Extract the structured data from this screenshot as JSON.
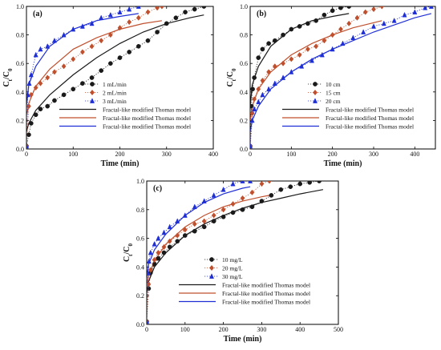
{
  "colors": {
    "black": "#1a1a1a",
    "red": "#c0502d",
    "blue": "#1f2fd6"
  },
  "chart_data": [
    {
      "type": "line",
      "panel_label": "(a)",
      "xlabel": "Time (min)",
      "ylabel_main": "C",
      "ylabel_sub1": "t",
      "ylabel_mid": "/C",
      "ylabel_sub2": "0",
      "xlim": [
        0,
        400
      ],
      "ylim": [
        0,
        1.0
      ],
      "xticks": [
        "0",
        "100",
        "200",
        "300",
        "400"
      ],
      "yticks": [
        "0.0",
        "0.2",
        "0.4",
        "0.6",
        "0.8",
        "1.0"
      ],
      "xtick_values": [
        0,
        100,
        200,
        300,
        400
      ],
      "ytick_values": [
        0,
        0.2,
        0.4,
        0.6,
        0.8,
        1.0
      ],
      "legend_position": "center-right",
      "series": [
        {
          "name": "1 mL/min",
          "marker": "circle",
          "color": "black",
          "x": [
            0,
            5,
            10,
            20,
            30,
            45,
            60,
            80,
            100,
            120,
            140,
            160,
            180,
            200,
            220,
            240,
            260,
            280,
            300,
            320,
            340,
            360,
            380
          ],
          "y": [
            0.02,
            0.1,
            0.18,
            0.24,
            0.28,
            0.3,
            0.34,
            0.38,
            0.42,
            0.46,
            0.5,
            0.55,
            0.6,
            0.64,
            0.68,
            0.72,
            0.76,
            0.82,
            0.88,
            0.92,
            0.96,
            0.98,
            1.0
          ]
        },
        {
          "name": "2 mL/min",
          "marker": "diamond",
          "color": "red",
          "x": [
            0,
            5,
            10,
            20,
            30,
            45,
            60,
            80,
            100,
            120,
            140,
            160,
            180,
            200,
            220,
            240,
            260,
            280,
            290
          ],
          "y": [
            0.02,
            0.3,
            0.38,
            0.43,
            0.46,
            0.5,
            0.54,
            0.58,
            0.63,
            0.68,
            0.72,
            0.76,
            0.8,
            0.85,
            0.89,
            0.92,
            0.96,
            0.99,
            1.0
          ]
        },
        {
          "name": "3 mL/min",
          "marker": "triangle",
          "color": "blue",
          "x": [
            0,
            3,
            6,
            10,
            20,
            30,
            45,
            60,
            80,
            100,
            120,
            140,
            160,
            180,
            200,
            220,
            240
          ],
          "y": [
            0.02,
            0.38,
            0.46,
            0.52,
            0.66,
            0.7,
            0.72,
            0.76,
            0.8,
            0.84,
            0.86,
            0.88,
            0.92,
            0.94,
            0.96,
            0.98,
            1.0
          ]
        }
      ],
      "models": [
        {
          "name": "Fractal-like modified Thomas model",
          "color": "black",
          "x": [
            0,
            5,
            20,
            50,
            100,
            150,
            200,
            250,
            300,
            350,
            380
          ],
          "y": [
            0.12,
            0.18,
            0.27,
            0.38,
            0.52,
            0.64,
            0.74,
            0.82,
            0.88,
            0.92,
            0.94
          ]
        },
        {
          "name": "Fractal-like modified Thomas model",
          "color": "red",
          "x": [
            0,
            5,
            20,
            50,
            100,
            150,
            200,
            250,
            290
          ],
          "y": [
            0.22,
            0.32,
            0.44,
            0.56,
            0.7,
            0.78,
            0.84,
            0.88,
            0.9
          ]
        },
        {
          "name": "Fractal-like modified Thomas model",
          "color": "blue",
          "x": [
            0,
            5,
            20,
            50,
            100,
            150,
            200,
            240
          ],
          "y": [
            0.3,
            0.45,
            0.58,
            0.72,
            0.84,
            0.9,
            0.93,
            0.95
          ]
        }
      ]
    },
    {
      "type": "line",
      "panel_label": "(b)",
      "xlabel": "Time (min)",
      "ylabel_main": "C",
      "ylabel_sub1": "t",
      "ylabel_mid": "/C",
      "ylabel_sub2": "0",
      "xlim": [
        0,
        450
      ],
      "ylim": [
        0,
        1.0
      ],
      "xticks": [
        "0",
        "100",
        "200",
        "300",
        "400"
      ],
      "yticks": [
        "0.0",
        "0.2",
        "0.4",
        "0.6",
        "0.8",
        "1.0"
      ],
      "xtick_values": [
        0,
        100,
        200,
        300,
        400
      ],
      "ytick_values": [
        0,
        0.2,
        0.4,
        0.6,
        0.8,
        1.0
      ],
      "legend_position": "center-right",
      "series": [
        {
          "name": "10 cm",
          "marker": "circle",
          "color": "black",
          "x": [
            0,
            3,
            6,
            10,
            20,
            30,
            45,
            60,
            80,
            100,
            120,
            140,
            160,
            180,
            200,
            220,
            240
          ],
          "y": [
            0.02,
            0.3,
            0.42,
            0.5,
            0.64,
            0.7,
            0.74,
            0.76,
            0.8,
            0.84,
            0.86,
            0.88,
            0.9,
            0.94,
            0.97,
            0.99,
            1.0
          ]
        },
        {
          "name": "15 cm",
          "marker": "diamond",
          "color": "red",
          "x": [
            0,
            5,
            10,
            20,
            30,
            45,
            60,
            80,
            100,
            120,
            140,
            160,
            180,
            200,
            220,
            240,
            260,
            280,
            300,
            320
          ],
          "y": [
            0.02,
            0.25,
            0.35,
            0.42,
            0.48,
            0.54,
            0.58,
            0.6,
            0.63,
            0.66,
            0.7,
            0.72,
            0.76,
            0.8,
            0.84,
            0.88,
            0.92,
            0.96,
            0.98,
            1.0
          ]
        },
        {
          "name": "20 cm",
          "marker": "triangle",
          "color": "blue",
          "x": [
            0,
            5,
            10,
            20,
            30,
            45,
            60,
            80,
            100,
            125,
            150,
            175,
            200,
            225,
            250,
            275,
            300,
            325,
            350,
            375,
            400,
            425,
            440
          ],
          "y": [
            0.02,
            0.2,
            0.28,
            0.33,
            0.38,
            0.42,
            0.46,
            0.5,
            0.54,
            0.58,
            0.62,
            0.66,
            0.7,
            0.74,
            0.78,
            0.82,
            0.86,
            0.88,
            0.9,
            0.94,
            0.96,
            0.99,
            1.0
          ]
        }
      ],
      "models": [
        {
          "name": "Fractal-like modified Thomas model",
          "color": "black",
          "x": [
            0,
            5,
            20,
            50,
            100,
            150,
            200,
            240
          ],
          "y": [
            0.3,
            0.45,
            0.58,
            0.72,
            0.84,
            0.9,
            0.93,
            0.95
          ]
        },
        {
          "name": "Fractal-like modified Thomas model",
          "color": "red",
          "x": [
            0,
            5,
            20,
            50,
            100,
            150,
            200,
            250,
            320
          ],
          "y": [
            0.2,
            0.3,
            0.42,
            0.54,
            0.66,
            0.74,
            0.8,
            0.85,
            0.9
          ]
        },
        {
          "name": "Fractal-like modified Thomas model",
          "color": "blue",
          "x": [
            0,
            5,
            20,
            50,
            100,
            150,
            200,
            300,
            400,
            440
          ],
          "y": [
            0.12,
            0.2,
            0.3,
            0.42,
            0.54,
            0.63,
            0.7,
            0.82,
            0.92,
            0.95
          ]
        }
      ]
    },
    {
      "type": "line",
      "panel_label": "(c)",
      "xlabel": "Time (min)",
      "ylabel_main": "C",
      "ylabel_sub1": "t",
      "ylabel_mid": "/C",
      "ylabel_sub2": "0",
      "xlim": [
        0,
        500
      ],
      "ylim": [
        0,
        1.0
      ],
      "xticks": [
        "0",
        "100",
        "200",
        "300",
        "400",
        "500"
      ],
      "yticks": [
        "0.0",
        "0.2",
        "0.4",
        "0.6",
        "0.8",
        "1.0"
      ],
      "xtick_values": [
        0,
        100,
        200,
        300,
        400,
        500
      ],
      "ytick_values": [
        0,
        0.2,
        0.4,
        0.6,
        0.8,
        1.0
      ],
      "legend_position": "center-right",
      "series": [
        {
          "name": "10 mg/L",
          "marker": "circle",
          "color": "black",
          "x": [
            0,
            5,
            10,
            20,
            30,
            45,
            60,
            80,
            100,
            125,
            150,
            175,
            200,
            225,
            250,
            275,
            300,
            325,
            350,
            375,
            400,
            425,
            450
          ],
          "y": [
            0.02,
            0.25,
            0.36,
            0.42,
            0.46,
            0.5,
            0.54,
            0.58,
            0.62,
            0.65,
            0.68,
            0.72,
            0.75,
            0.78,
            0.8,
            0.82,
            0.86,
            0.9,
            0.94,
            0.96,
            0.98,
            0.99,
            1.0
          ]
        },
        {
          "name": "20 mg/L",
          "marker": "diamond",
          "color": "red",
          "x": [
            0,
            5,
            10,
            20,
            30,
            45,
            60,
            80,
            100,
            125,
            150,
            175,
            200,
            225,
            250,
            275,
            300,
            320
          ],
          "y": [
            0.02,
            0.28,
            0.38,
            0.45,
            0.5,
            0.54,
            0.58,
            0.62,
            0.66,
            0.7,
            0.72,
            0.76,
            0.8,
            0.84,
            0.88,
            0.92,
            0.98,
            1.0
          ]
        },
        {
          "name": "30 mg/L",
          "marker": "triangle",
          "color": "blue",
          "x": [
            0,
            3,
            6,
            10,
            20,
            30,
            45,
            60,
            80,
            100,
            125,
            150,
            175,
            200,
            225,
            250,
            270
          ],
          "y": [
            0.02,
            0.36,
            0.44,
            0.5,
            0.56,
            0.6,
            0.64,
            0.68,
            0.72,
            0.76,
            0.82,
            0.86,
            0.9,
            0.94,
            0.98,
            1.0,
            1.0
          ]
        }
      ],
      "models": [
        {
          "name": "Fractal-like modified Thomas model",
          "color": "black",
          "x": [
            0,
            5,
            20,
            50,
            100,
            150,
            200,
            250,
            300,
            350,
            400,
            460
          ],
          "y": [
            0.22,
            0.3,
            0.4,
            0.5,
            0.62,
            0.7,
            0.76,
            0.81,
            0.85,
            0.88,
            0.91,
            0.94
          ]
        },
        {
          "name": "Fractal-like modified Thomas model",
          "color": "red",
          "x": [
            0,
            5,
            20,
            50,
            100,
            150,
            200,
            250,
            300,
            320
          ],
          "y": [
            0.26,
            0.34,
            0.44,
            0.56,
            0.68,
            0.76,
            0.82,
            0.86,
            0.89,
            0.9
          ]
        },
        {
          "name": "Fractal-like modified Thomas model",
          "color": "blue",
          "x": [
            0,
            5,
            20,
            50,
            100,
            150,
            200,
            250,
            270
          ],
          "y": [
            0.32,
            0.42,
            0.52,
            0.63,
            0.76,
            0.85,
            0.91,
            0.95,
            0.96
          ]
        }
      ]
    }
  ]
}
